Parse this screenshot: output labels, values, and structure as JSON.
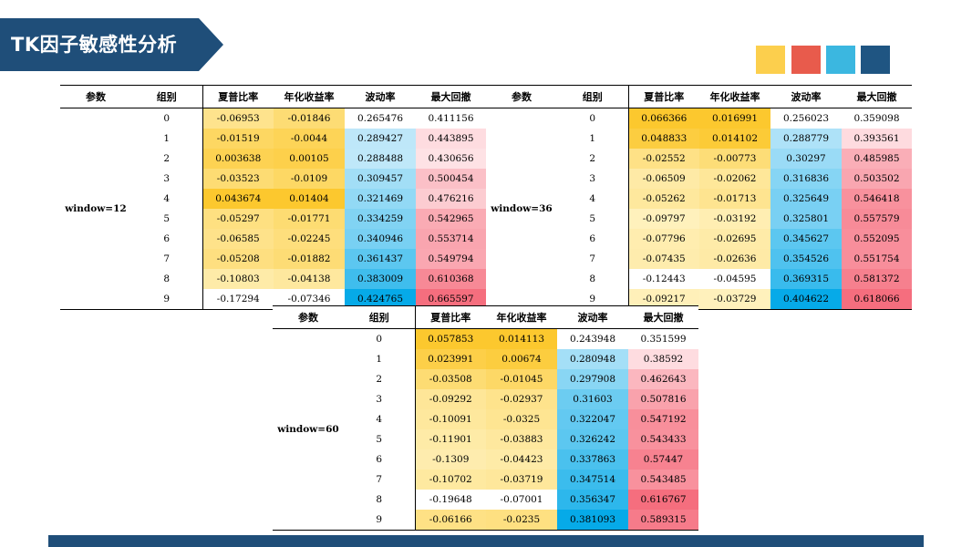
{
  "title": "TK因子敏感性分析",
  "colors": {
    "title_bg": "#1f4e79",
    "swatches": [
      "#fccf4d",
      "#e85b4c",
      "#3bb7e0",
      "#1f5582"
    ],
    "footer": "#1f4e79"
  },
  "headers": [
    "参数",
    "组别",
    "夏普比率",
    "年化收益率",
    "波动率",
    "最大回撤"
  ],
  "tables": [
    {
      "param": "window=12",
      "rows": [
        {
          "group": "0",
          "sharpe": "-0.06953",
          "ret": "-0.01846",
          "vol": "0.265476",
          "mdd": "0.411156"
        },
        {
          "group": "1",
          "sharpe": "-0.01519",
          "ret": "-0.0044",
          "vol": "0.289427",
          "mdd": "0.443895"
        },
        {
          "group": "2",
          "sharpe": "0.003638",
          "ret": "0.00105",
          "vol": "0.288488",
          "mdd": "0.430656"
        },
        {
          "group": "3",
          "sharpe": "-0.03523",
          "ret": "-0.0109",
          "vol": "0.309457",
          "mdd": "0.500454"
        },
        {
          "group": "4",
          "sharpe": "0.043674",
          "ret": "0.01404",
          "vol": "0.321469",
          "mdd": "0.476216"
        },
        {
          "group": "5",
          "sharpe": "-0.05297",
          "ret": "-0.01771",
          "vol": "0.334259",
          "mdd": "0.542965"
        },
        {
          "group": "6",
          "sharpe": "-0.06585",
          "ret": "-0.02245",
          "vol": "0.340946",
          "mdd": "0.553714"
        },
        {
          "group": "7",
          "sharpe": "-0.05208",
          "ret": "-0.01882",
          "vol": "0.361437",
          "mdd": "0.549794"
        },
        {
          "group": "8",
          "sharpe": "-0.10803",
          "ret": "-0.04138",
          "vol": "0.383009",
          "mdd": "0.610368"
        },
        {
          "group": "9",
          "sharpe": "-0.17294",
          "ret": "-0.07346",
          "vol": "0.424765",
          "mdd": "0.665597"
        }
      ]
    },
    {
      "param": "window=36",
      "rows": [
        {
          "group": "0",
          "sharpe": "0.066366",
          "ret": "0.016991",
          "vol": "0.256023",
          "mdd": "0.359098"
        },
        {
          "group": "1",
          "sharpe": "0.048833",
          "ret": "0.014102",
          "vol": "0.288779",
          "mdd": "0.393561"
        },
        {
          "group": "2",
          "sharpe": "-0.02552",
          "ret": "-0.00773",
          "vol": "0.30297",
          "mdd": "0.485985"
        },
        {
          "group": "3",
          "sharpe": "-0.06509",
          "ret": "-0.02062",
          "vol": "0.316836",
          "mdd": "0.503502"
        },
        {
          "group": "4",
          "sharpe": "-0.05262",
          "ret": "-0.01713",
          "vol": "0.325649",
          "mdd": "0.546418"
        },
        {
          "group": "5",
          "sharpe": "-0.09797",
          "ret": "-0.03192",
          "vol": "0.325801",
          "mdd": "0.557579"
        },
        {
          "group": "6",
          "sharpe": "-0.07796",
          "ret": "-0.02695",
          "vol": "0.345627",
          "mdd": "0.552095"
        },
        {
          "group": "7",
          "sharpe": "-0.07435",
          "ret": "-0.02636",
          "vol": "0.354526",
          "mdd": "0.551754"
        },
        {
          "group": "8",
          "sharpe": "-0.12443",
          "ret": "-0.04595",
          "vol": "0.369315",
          "mdd": "0.581372"
        },
        {
          "group": "9",
          "sharpe": "-0.09217",
          "ret": "-0.03729",
          "vol": "0.404622",
          "mdd": "0.618066"
        }
      ]
    },
    {
      "param": "window=60",
      "rows": [
        {
          "group": "0",
          "sharpe": "0.057853",
          "ret": "0.014113",
          "vol": "0.243948",
          "mdd": "0.351599"
        },
        {
          "group": "1",
          "sharpe": "0.023991",
          "ret": "0.00674",
          "vol": "0.280948",
          "mdd": "0.38592"
        },
        {
          "group": "2",
          "sharpe": "-0.03508",
          "ret": "-0.01045",
          "vol": "0.297908",
          "mdd": "0.462643"
        },
        {
          "group": "3",
          "sharpe": "-0.09292",
          "ret": "-0.02937",
          "vol": "0.31603",
          "mdd": "0.507816"
        },
        {
          "group": "4",
          "sharpe": "-0.10091",
          "ret": "-0.0325",
          "vol": "0.322047",
          "mdd": "0.547192"
        },
        {
          "group": "5",
          "sharpe": "-0.11901",
          "ret": "-0.03883",
          "vol": "0.326242",
          "mdd": "0.543433"
        },
        {
          "group": "6",
          "sharpe": "-0.1309",
          "ret": "-0.04423",
          "vol": "0.337863",
          "mdd": "0.57447"
        },
        {
          "group": "7",
          "sharpe": "-0.10702",
          "ret": "-0.03719",
          "vol": "0.347514",
          "mdd": "0.543485"
        },
        {
          "group": "8",
          "sharpe": "-0.19648",
          "ret": "-0.07001",
          "vol": "0.356347",
          "mdd": "0.616767"
        },
        {
          "group": "9",
          "sharpe": "-0.06166",
          "ret": "-0.0235",
          "vol": "0.381093",
          "mdd": "0.589315"
        }
      ]
    }
  ]
}
